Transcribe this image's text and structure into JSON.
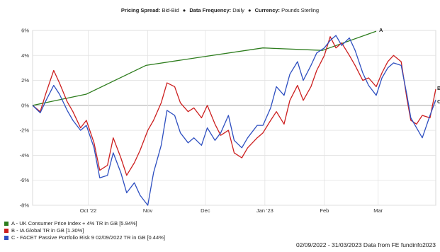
{
  "header": {
    "pricing_key": "Pricing Spread:",
    "pricing_val": "Bid-Bid",
    "sep": "●",
    "frequency_key": "Data Frequency:",
    "frequency_val": "Daily",
    "currency_key": "Currency:",
    "currency_val": "Pounds Sterling"
  },
  "footer": "02/09/2022 - 31/03/2023 Data from FE fundinfo2023",
  "chart_data": {
    "type": "line",
    "y_ticks": [
      "6%",
      "4%",
      "2%",
      "0%",
      "-2%",
      "-4%",
      "-6%",
      "-8%"
    ],
    "y_tick_values": [
      6,
      4,
      2,
      0,
      -2,
      -4,
      -6,
      -8
    ],
    "x_ticks": [
      "Oct '22",
      "Nov",
      "Dec",
      "Jan '23",
      "Feb",
      "Mar"
    ],
    "x_tick_dates": [
      "2022-10-01",
      "2022-11-01",
      "2022-12-01",
      "2023-01-01",
      "2023-02-01",
      "2023-03-01"
    ],
    "x_range": [
      "2022-09-02",
      "2023-03-31"
    ],
    "ylim": [
      -8,
      6
    ],
    "grid": true,
    "legend_position": "bottom-left",
    "series": [
      {
        "name": "A - UK Consumer Price Index + 4% TR in GB [5.94%]",
        "end_label": "A",
        "color": "#2e7d1e",
        "points": [
          [
            "2022-09-02",
            0.0
          ],
          [
            "2022-09-30",
            0.9
          ],
          [
            "2022-10-31",
            3.2
          ],
          [
            "2022-11-30",
            3.9
          ],
          [
            "2022-12-31",
            4.6
          ],
          [
            "2023-01-31",
            4.4
          ],
          [
            "2023-02-28",
            5.94
          ]
        ]
      },
      {
        "name": "B - IA Global TR in GB [1.30%]",
        "end_label": "B",
        "color": "#cc1f1f",
        "points": [
          [
            "2022-09-02",
            0
          ],
          [
            "2022-09-06",
            -0.5
          ],
          [
            "2022-09-09",
            1.0
          ],
          [
            "2022-09-13",
            2.8
          ],
          [
            "2022-09-16",
            1.8
          ],
          [
            "2022-09-20",
            0.3
          ],
          [
            "2022-09-23",
            -0.5
          ],
          [
            "2022-09-27",
            -1.8
          ],
          [
            "2022-09-30",
            -1.2
          ],
          [
            "2022-10-04",
            -3.0
          ],
          [
            "2022-10-07",
            -5.2
          ],
          [
            "2022-10-11",
            -4.8
          ],
          [
            "2022-10-14",
            -2.6
          ],
          [
            "2022-10-18",
            -4.2
          ],
          [
            "2022-10-21",
            -5.6
          ],
          [
            "2022-10-25",
            -4.6
          ],
          [
            "2022-10-28",
            -3.6
          ],
          [
            "2022-11-01",
            -2.0
          ],
          [
            "2022-11-04",
            -1.2
          ],
          [
            "2022-11-08",
            0.2
          ],
          [
            "2022-11-11",
            1.8
          ],
          [
            "2022-11-15",
            1.5
          ],
          [
            "2022-11-18",
            0.2
          ],
          [
            "2022-11-22",
            -0.5
          ],
          [
            "2022-11-25",
            -0.2
          ],
          [
            "2022-11-29",
            -1.0
          ],
          [
            "2022-12-02",
            0.0
          ],
          [
            "2022-12-06",
            -1.5
          ],
          [
            "2022-12-09",
            -2.4
          ],
          [
            "2022-12-13",
            -2.0
          ],
          [
            "2022-12-16",
            -3.8
          ],
          [
            "2022-12-20",
            -4.2
          ],
          [
            "2022-12-23",
            -3.4
          ],
          [
            "2022-12-28",
            -2.6
          ],
          [
            "2022-12-31",
            -2.2
          ],
          [
            "2023-01-04",
            -1.2
          ],
          [
            "2023-01-07",
            -0.5
          ],
          [
            "2023-01-11",
            -1.5
          ],
          [
            "2023-01-14",
            0.4
          ],
          [
            "2023-01-18",
            1.6
          ],
          [
            "2023-01-21",
            0.4
          ],
          [
            "2023-01-25",
            1.5
          ],
          [
            "2023-01-28",
            2.8
          ],
          [
            "2023-02-01",
            4.0
          ],
          [
            "2023-02-04",
            5.5
          ],
          [
            "2023-02-07",
            4.6
          ],
          [
            "2023-02-10",
            5.0
          ],
          [
            "2023-02-14",
            4.0
          ],
          [
            "2023-02-17",
            3.2
          ],
          [
            "2023-02-21",
            2.0
          ],
          [
            "2023-02-24",
            2.2
          ],
          [
            "2023-02-28",
            1.5
          ],
          [
            "2023-03-03",
            2.6
          ],
          [
            "2023-03-06",
            3.5
          ],
          [
            "2023-03-09",
            4.0
          ],
          [
            "2023-03-13",
            3.5
          ],
          [
            "2023-03-16",
            0.5
          ],
          [
            "2023-03-18",
            -1.2
          ],
          [
            "2023-03-21",
            -1.5
          ],
          [
            "2023-03-24",
            -0.8
          ],
          [
            "2023-03-28",
            -1.0
          ],
          [
            "2023-03-31",
            1.3
          ]
        ]
      },
      {
        "name": "C - FACET Passive Portfolio Risk 9 02/09/2022 TR in GB [0.44%]",
        "end_label": "C",
        "color": "#2e4fc0",
        "points": [
          [
            "2022-09-02",
            0
          ],
          [
            "2022-09-06",
            -0.6
          ],
          [
            "2022-09-09",
            0.4
          ],
          [
            "2022-09-13",
            1.6
          ],
          [
            "2022-09-16",
            0.9
          ],
          [
            "2022-09-20",
            -0.4
          ],
          [
            "2022-09-23",
            -1.2
          ],
          [
            "2022-09-27",
            -2.0
          ],
          [
            "2022-09-30",
            -1.6
          ],
          [
            "2022-10-04",
            -3.4
          ],
          [
            "2022-10-07",
            -5.8
          ],
          [
            "2022-10-11",
            -5.6
          ],
          [
            "2022-10-14",
            -3.8
          ],
          [
            "2022-10-18",
            -5.4
          ],
          [
            "2022-10-21",
            -7.0
          ],
          [
            "2022-10-25",
            -6.2
          ],
          [
            "2022-10-28",
            -7.2
          ],
          [
            "2022-11-01",
            -8.0
          ],
          [
            "2022-11-04",
            -5.4
          ],
          [
            "2022-11-08",
            -3.2
          ],
          [
            "2022-11-11",
            -0.4
          ],
          [
            "2022-11-15",
            -0.8
          ],
          [
            "2022-11-18",
            -2.2
          ],
          [
            "2022-11-22",
            -3.0
          ],
          [
            "2022-11-25",
            -2.6
          ],
          [
            "2022-11-29",
            -3.2
          ],
          [
            "2022-12-02",
            -1.8
          ],
          [
            "2022-12-06",
            -2.8
          ],
          [
            "2022-12-09",
            -2.2
          ],
          [
            "2022-12-13",
            -0.8
          ],
          [
            "2022-12-16",
            -2.8
          ],
          [
            "2022-12-20",
            -3.4
          ],
          [
            "2022-12-23",
            -2.6
          ],
          [
            "2022-12-28",
            -1.6
          ],
          [
            "2022-12-31",
            -1.6
          ],
          [
            "2023-01-04",
            -0.2
          ],
          [
            "2023-01-07",
            1.5
          ],
          [
            "2023-01-11",
            0.8
          ],
          [
            "2023-01-14",
            2.5
          ],
          [
            "2023-01-18",
            3.5
          ],
          [
            "2023-01-21",
            2.0
          ],
          [
            "2023-01-25",
            3.2
          ],
          [
            "2023-01-28",
            4.2
          ],
          [
            "2023-02-01",
            4.6
          ],
          [
            "2023-02-04",
            5.2
          ],
          [
            "2023-02-07",
            5.6
          ],
          [
            "2023-02-10",
            4.8
          ],
          [
            "2023-02-14",
            5.4
          ],
          [
            "2023-02-17",
            4.4
          ],
          [
            "2023-02-21",
            2.6
          ],
          [
            "2023-02-24",
            1.6
          ],
          [
            "2023-02-28",
            0.8
          ],
          [
            "2023-03-03",
            2.2
          ],
          [
            "2023-03-06",
            3.0
          ],
          [
            "2023-03-09",
            3.4
          ],
          [
            "2023-03-13",
            3.2
          ],
          [
            "2023-03-16",
            0.8
          ],
          [
            "2023-03-18",
            -1.0
          ],
          [
            "2023-03-21",
            -1.8
          ],
          [
            "2023-03-24",
            -2.6
          ],
          [
            "2023-03-28",
            -0.8
          ],
          [
            "2023-03-31",
            0.44
          ]
        ]
      }
    ]
  }
}
